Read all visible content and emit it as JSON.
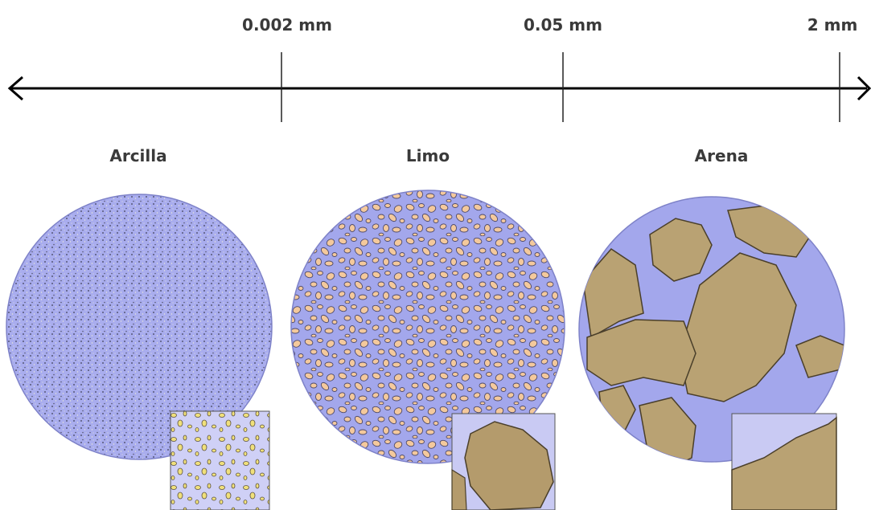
{
  "scale": {
    "labels": [
      "0.002 mm",
      "0.05 mm",
      "2 mm"
    ]
  },
  "classes": [
    {
      "name": "Arcilla"
    },
    {
      "name": "Limo"
    },
    {
      "name": "Arena"
    }
  ]
}
